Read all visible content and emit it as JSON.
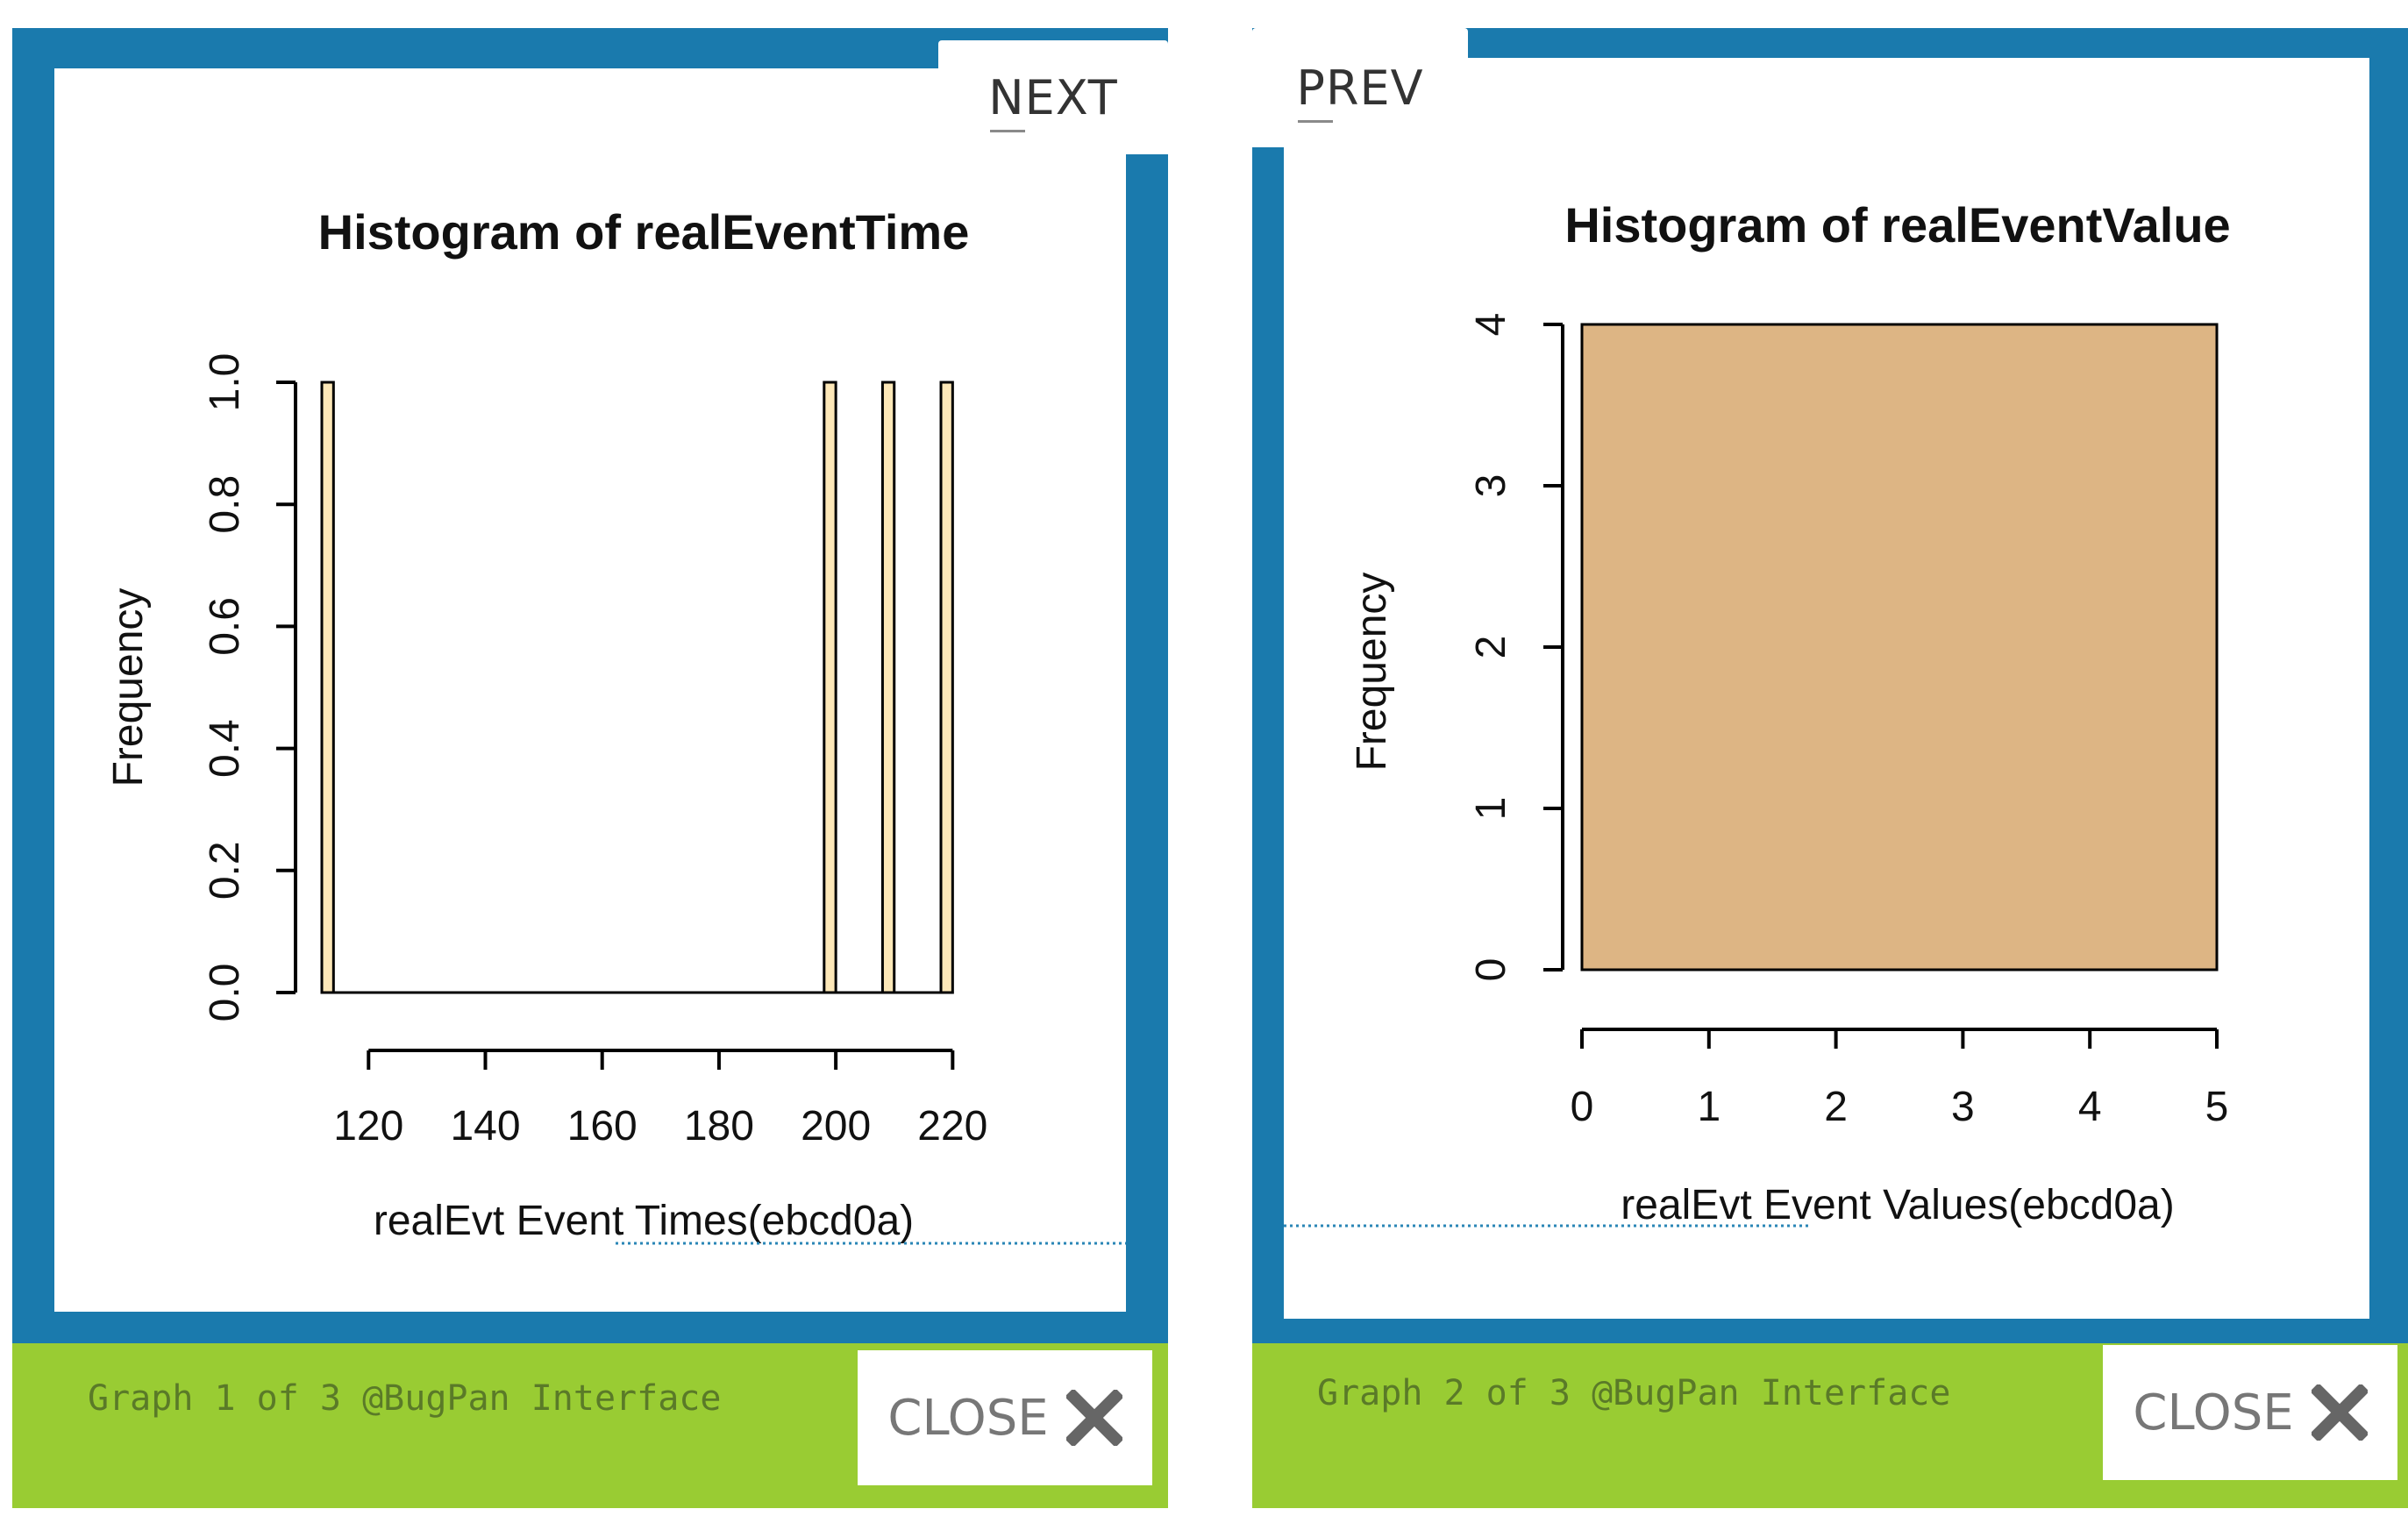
{
  "lightboxes": [
    {
      "nav_label": "NEXT",
      "footer_caption": "Graph 1 of 3 @BugPan Interface",
      "close_label": "CLOSE",
      "close_icon": "close-x-icon"
    },
    {
      "nav_label": "PREV",
      "footer_caption": "Graph 2 of 3 @BugPan Interface",
      "close_label": "CLOSE",
      "close_icon": "close-x-icon"
    }
  ],
  "colors": {
    "frame_blue": "#1a7aad",
    "footer_green": "#99cc33",
    "bar_fill_1": "#fde8b8",
    "bar_fill_2": "#ddb584"
  },
  "chart_data": [
    {
      "type": "bar",
      "title": "Histogram of realEventTime",
      "xlabel": "realEvt Event Times(ebcd0a)",
      "ylabel": "Frequency",
      "xlim": [
        112,
        221
      ],
      "ylim": [
        0,
        1
      ],
      "xticks": [
        120,
        140,
        160,
        180,
        200,
        220
      ],
      "yticks": [
        "0.0",
        "0.2",
        "0.4",
        "0.6",
        "0.8",
        "1.0"
      ],
      "bins": [
        {
          "x0": 112,
          "x1": 114,
          "count": 1
        },
        {
          "x0": 198,
          "x1": 200,
          "count": 1
        },
        {
          "x0": 208,
          "x1": 210,
          "count": 1
        },
        {
          "x0": 218,
          "x1": 220,
          "count": 1
        }
      ]
    },
    {
      "type": "bar",
      "title": "Histogram of realEventValue",
      "xlabel": "realEvt Event Values(ebcd0a)",
      "ylabel": "Frequency",
      "xlim": [
        0,
        5
      ],
      "ylim": [
        0,
        4
      ],
      "xticks": [
        "0",
        "1",
        "2",
        "3",
        "4",
        "5"
      ],
      "yticks": [
        "0",
        "1",
        "2",
        "3",
        "4"
      ],
      "bins": [
        {
          "x0": 0,
          "x1": 5,
          "count": 4
        }
      ]
    }
  ]
}
